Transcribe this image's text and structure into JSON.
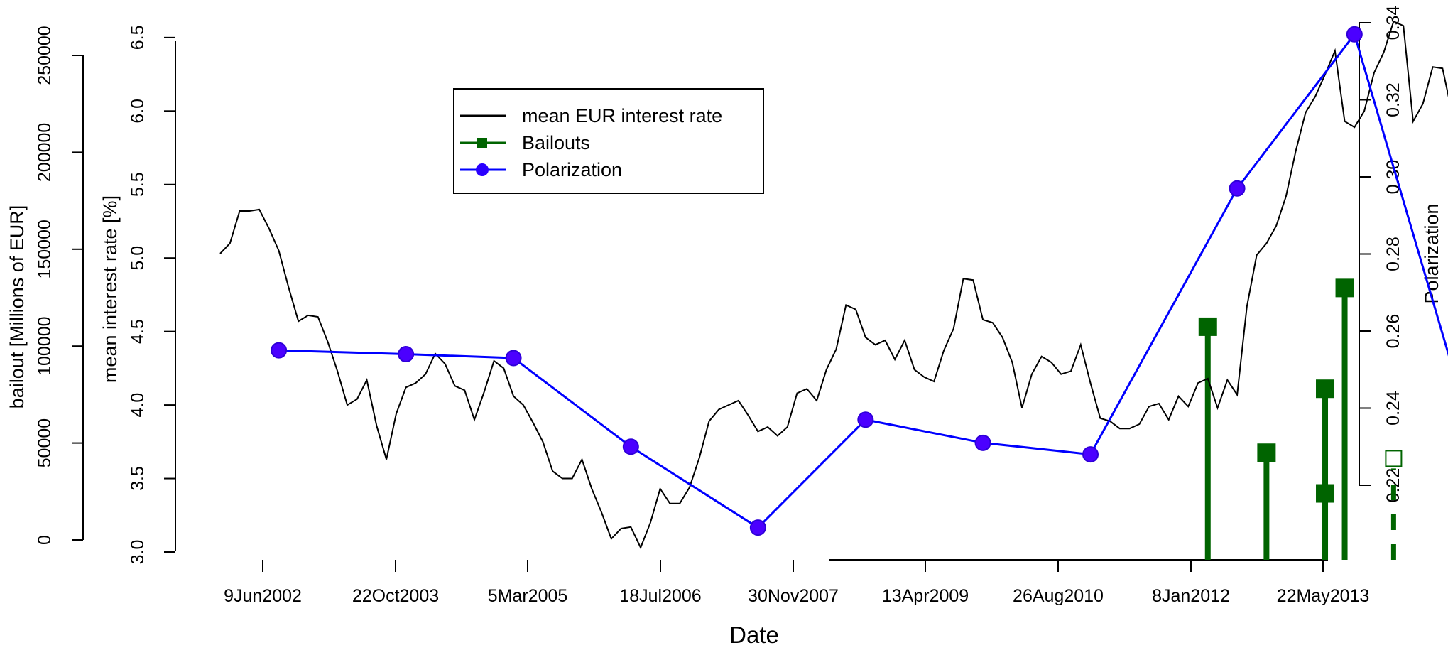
{
  "chart_data": {
    "type": "line",
    "xlabel": "Date",
    "x_ticks": [
      "9Jun2002",
      "22Oct2003",
      "5Mar2005",
      "18Jul2006",
      "30Nov2007",
      "13Apr2009",
      "26Aug2010",
      "8Jan2012",
      "22May2013"
    ],
    "axes": {
      "bailout": {
        "label": "bailout [Millions of EUR]",
        "ticks": [
          0,
          50000,
          100000,
          150000,
          200000,
          250000
        ],
        "tick_labels": [
          "0",
          "50000",
          "100000",
          "150000",
          "200000",
          "250000"
        ],
        "range": [
          0,
          250000
        ]
      },
      "interest": {
        "label": "mean interest rate [%]",
        "ticks": [
          3.0,
          3.5,
          4.0,
          4.5,
          5.0,
          5.5,
          6.0,
          6.5
        ],
        "tick_labels": [
          "3.0",
          "3.5",
          "4.0",
          "4.5",
          "5.0",
          "5.5",
          "6.0",
          "6.5"
        ],
        "range": [
          3.0,
          6.5
        ]
      },
      "polarization": {
        "label": "Polarization",
        "ticks": [
          0.22,
          0.24,
          0.26,
          0.28,
          0.3,
          0.32,
          0.34
        ],
        "tick_labels": [
          "0.22",
          "0.24",
          "0.26",
          "0.28",
          "0.30",
          "0.32",
          "0.34"
        ],
        "range": [
          0.22,
          0.34
        ]
      }
    },
    "legend": {
      "position": "top-center",
      "entries": [
        {
          "label": "mean EUR interest rate",
          "color": "#000000",
          "marker": "line"
        },
        {
          "label": "Bailouts",
          "color": "#006400",
          "marker": "square"
        },
        {
          "label": "Polarization",
          "color": "#0000ff",
          "marker": "circle"
        }
      ]
    },
    "series": [
      {
        "name": "mean EUR interest rate",
        "axis": "interest",
        "color": "#000000",
        "x": [
          "2001-12",
          "2002-01",
          "2002-02",
          "2002-03",
          "2002-04",
          "2002-05",
          "2002-06",
          "2002-07",
          "2002-08",
          "2002-09",
          "2002-10",
          "2002-11",
          "2002-12",
          "2003-01",
          "2003-02",
          "2003-03",
          "2003-04",
          "2003-05",
          "2003-06",
          "2003-07",
          "2003-08",
          "2003-09",
          "2003-10",
          "2003-11",
          "2003-12",
          "2004-01",
          "2004-02",
          "2004-03",
          "2004-04",
          "2004-05",
          "2004-06",
          "2004-07",
          "2004-08",
          "2004-09",
          "2004-10",
          "2004-11",
          "2004-12",
          "2005-01",
          "2005-02",
          "2005-03",
          "2005-04",
          "2005-05",
          "2005-06",
          "2005-07",
          "2005-08",
          "2005-09",
          "2005-10",
          "2005-11",
          "2005-12",
          "2006-01",
          "2006-02",
          "2006-03",
          "2006-04",
          "2006-05",
          "2006-06",
          "2006-07",
          "2006-08",
          "2006-09",
          "2006-10",
          "2006-11",
          "2006-12",
          "2007-01",
          "2007-02",
          "2007-03",
          "2007-04",
          "2007-05",
          "2007-06",
          "2007-07",
          "2007-08",
          "2007-09",
          "2007-10",
          "2007-11",
          "2007-12",
          "2008-01",
          "2008-02",
          "2008-03",
          "2008-04",
          "2008-05",
          "2008-06",
          "2008-07",
          "2008-08",
          "2008-09",
          "2008-10",
          "2008-11",
          "2008-12",
          "2009-01",
          "2009-02",
          "2009-03",
          "2009-04",
          "2009-05",
          "2009-06",
          "2009-07",
          "2009-08",
          "2009-09",
          "2009-10",
          "2009-11",
          "2009-12",
          "2010-01",
          "2010-02",
          "2010-03",
          "2010-04",
          "2010-05",
          "2010-06",
          "2010-07",
          "2010-08",
          "2010-09",
          "2010-10",
          "2010-11",
          "2010-12",
          "2011-01",
          "2011-02",
          "2011-03",
          "2011-04",
          "2011-05",
          "2011-06",
          "2011-07",
          "2011-08",
          "2011-09",
          "2011-10",
          "2011-11",
          "2011-12",
          "2012-01",
          "2012-02",
          "2012-03",
          "2012-04",
          "2012-05",
          "2012-06",
          "2012-07",
          "2012-08",
          "2012-09",
          "2012-10",
          "2012-11",
          "2012-12",
          "2013-01",
          "2013-02",
          "2013-03",
          "2013-04"
        ],
        "values": [
          5.03,
          5.1,
          5.32,
          5.32,
          5.33,
          5.2,
          5.05,
          4.8,
          4.57,
          4.61,
          4.6,
          4.43,
          4.23,
          4.0,
          4.04,
          4.17,
          3.86,
          3.63,
          3.94,
          4.12,
          4.15,
          4.21,
          4.35,
          4.28,
          4.13,
          4.1,
          3.9,
          4.09,
          4.3,
          4.25,
          4.06,
          4.0,
          3.88,
          3.75,
          3.55,
          3.5,
          3.5,
          3.63,
          3.43,
          3.27,
          3.09,
          3.16,
          3.17,
          3.03,
          3.2,
          3.43,
          3.33,
          3.33,
          3.44,
          3.64,
          3.89,
          3.97,
          4.0,
          4.03,
          3.93,
          3.82,
          3.85,
          3.79,
          3.85,
          4.08,
          4.11,
          4.03,
          4.24,
          4.38,
          4.68,
          4.65,
          4.46,
          4.41,
          4.44,
          4.31,
          4.44,
          4.24,
          4.19,
          4.16,
          4.37,
          4.52,
          4.86,
          4.85,
          4.58,
          4.56,
          4.46,
          4.29,
          3.98,
          4.21,
          4.33,
          4.29,
          4.21,
          4.23,
          4.41,
          4.15,
          3.91,
          3.89,
          3.84,
          3.84,
          3.87,
          3.99,
          4.01,
          3.9,
          4.06,
          3.99,
          4.15,
          4.18,
          3.98,
          4.17,
          4.07,
          4.67,
          5.02,
          5.1,
          5.22,
          5.42,
          5.73,
          5.99,
          6.1,
          6.25,
          6.41,
          5.93,
          5.89,
          6.0,
          6.26,
          6.4,
          6.61,
          6.58,
          5.93,
          6.05,
          6.3,
          6.29,
          5.98,
          5.78,
          5.47,
          5.06,
          4.58,
          4.43,
          3.91,
          3.63,
          3.67,
          3.67,
          3.67
        ]
      },
      {
        "name": "Polarization",
        "axis": "polarization",
        "color": "#0000ff",
        "x": [
          "2002-06",
          "2003-07",
          "2004-06",
          "2005-06",
          "2006-07",
          "2007-06",
          "2008-06",
          "2009-05",
          "2010-08",
          "2011-08",
          "2012-07"
        ],
        "values": [
          0.255,
          0.254,
          0.253,
          0.23,
          0.209,
          0.237,
          0.231,
          0.228,
          0.297,
          0.337,
          0.242
        ]
      },
      {
        "name": "Bailouts",
        "axis": "bailout",
        "color": "#006400",
        "x": [
          "2010-05",
          "2010-11",
          "2011-05",
          "2011-05",
          "2011-07"
        ],
        "values": [
          110000,
          45000,
          24000,
          78000,
          130000
        ]
      },
      {
        "name": "Bailouts (planned)",
        "axis": "bailout",
        "color": "#006400",
        "style": "dashed-open",
        "x": [
          "2011-12"
        ],
        "values": [
          42000
        ]
      }
    ]
  }
}
